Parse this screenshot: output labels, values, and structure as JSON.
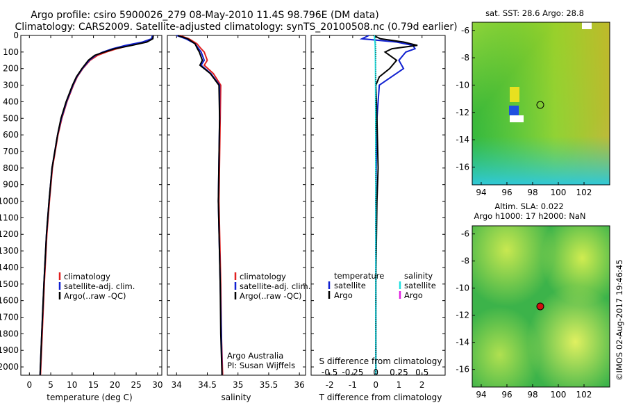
{
  "header": {
    "line1": "Argo profile: csiro 5900026_279 08-May-2010 11.4S 98.796E (DM data)",
    "line2": "Climatology: CARS2009. Satellite-adjusted climatology: synTS_20100508.nc (0.79d earlier)"
  },
  "colors": {
    "clim": "#e02020",
    "sat": "#1020d0",
    "argo": "#000000",
    "sal_sat": "#20e0e0",
    "sal_argo": "#e020e0"
  },
  "chart_data": [
    {
      "type": "line",
      "id": "temperature",
      "xlabel": "temperature (deg C)",
      "ylabel": "",
      "xlim": [
        -2,
        31
      ],
      "ylim": [
        0,
        2050
      ],
      "xticks": [
        0,
        5,
        10,
        15,
        20,
        25,
        30
      ],
      "yticks": [
        0,
        100,
        200,
        300,
        400,
        500,
        600,
        700,
        800,
        900,
        1000,
        1100,
        1200,
        1300,
        1400,
        1500,
        1600,
        1700,
        1800,
        1900,
        2000
      ],
      "legend": [
        "climatology",
        "satellite-adj. clim.",
        "Argo(..raw -QC)"
      ],
      "series": [
        {
          "name": "climatology",
          "depth": [
            0,
            20,
            40,
            60,
            80,
            100,
            120,
            150,
            200,
            250,
            300,
            400,
            500,
            600,
            800,
            1000,
            1200,
            1500,
            1800,
            2050
          ],
          "values": [
            29.0,
            28.8,
            27.0,
            23.5,
            20.5,
            18.0,
            16.0,
            14.2,
            12.5,
            11.2,
            10.3,
            8.8,
            7.6,
            6.7,
            5.4,
            4.7,
            4.1,
            3.5,
            3.0,
            2.6
          ]
        },
        {
          "name": "satellite-adj. clim.",
          "depth": [
            0,
            20,
            40,
            60,
            80,
            100,
            120,
            150,
            200,
            250,
            300,
            400,
            500,
            600,
            800,
            1000,
            1200,
            1500,
            1800,
            2050
          ],
          "values": [
            28.8,
            28.6,
            26.5,
            22.5,
            19.5,
            17.2,
            15.5,
            14.0,
            12.4,
            11.1,
            10.2,
            8.7,
            7.5,
            6.6,
            5.3,
            4.6,
            4.0,
            3.4,
            2.9,
            2.5
          ]
        },
        {
          "name": "Argo(..raw -QC)",
          "depth": [
            0,
            20,
            40,
            60,
            80,
            100,
            120,
            150,
            200,
            250,
            300,
            400,
            500,
            600,
            800,
            1000,
            1200,
            1500,
            1800,
            2050
          ],
          "values": [
            29.0,
            28.9,
            27.5,
            24.0,
            20.0,
            17.5,
            15.3,
            13.8,
            12.3,
            11.0,
            10.1,
            8.6,
            7.4,
            6.6,
            5.3,
            4.6,
            4.0,
            3.4,
            2.9,
            2.5
          ]
        }
      ]
    },
    {
      "type": "line",
      "id": "salinity",
      "xlabel": "salinity",
      "ylabel": "",
      "xlim": [
        33.85,
        36.1
      ],
      "ylim": [
        0,
        2050
      ],
      "xticks": [
        34,
        34.5,
        35,
        35.5,
        36
      ],
      "legend": [
        "climatology",
        "satellite-adj. clim.",
        "Argo(..raw -QC)"
      ],
      "series": [
        {
          "name": "climatology",
          "depth": [
            0,
            20,
            50,
            80,
            100,
            150,
            180,
            230,
            300,
            500,
            1000,
            1500,
            1800,
            2050
          ],
          "values": [
            34.05,
            34.2,
            34.33,
            34.4,
            34.45,
            34.5,
            34.45,
            34.6,
            34.72,
            34.71,
            34.69,
            34.72,
            34.73,
            34.75
          ]
        },
        {
          "name": "satellite-adj. clim.",
          "depth": [
            0,
            20,
            50,
            80,
            100,
            150,
            180,
            230,
            300,
            500,
            1000,
            1500,
            1800,
            2050
          ],
          "values": [
            34.0,
            34.15,
            34.3,
            34.36,
            34.4,
            34.45,
            34.4,
            34.56,
            34.7,
            34.7,
            34.68,
            34.71,
            34.73,
            34.74
          ]
        },
        {
          "name": "Argo(..raw -QC)",
          "depth": [
            0,
            20,
            50,
            80,
            100,
            150,
            180,
            230,
            300,
            500,
            1000,
            1500,
            1800,
            2050
          ],
          "values": [
            34.02,
            34.18,
            34.3,
            34.34,
            34.37,
            34.42,
            34.38,
            34.55,
            34.69,
            34.7,
            34.68,
            34.71,
            34.72,
            34.74
          ]
        }
      ],
      "annotation": [
        "Argo Australia",
        "PI: Susan Wijffels"
      ]
    },
    {
      "type": "line",
      "id": "difference",
      "xlabel": "T difference from climatology",
      "xlabel_top": "S difference from climatology",
      "xlim": [
        -2.8,
        3.0
      ],
      "ylim": [
        0,
        2050
      ],
      "xticks": [
        -2,
        -1,
        0,
        1,
        2
      ],
      "sticks": [
        {
          "label": "-0.5",
          "value": -0.5
        },
        {
          "label": "-0.25",
          "value": -0.25
        },
        {
          "label": "0",
          "value": 0
        },
        {
          "label": "0.25",
          "value": 0.25
        },
        {
          "label": "0.5",
          "value": 0.5
        }
      ],
      "legend_temperature": {
        "title": "temperature",
        "items": [
          "satellite",
          "Argo"
        ]
      },
      "legend_salinity": {
        "title": "salinity",
        "items": [
          "satellite",
          "Argo"
        ]
      },
      "series": [
        {
          "name": "T satellite",
          "depth": [
            0,
            20,
            40,
            60,
            80,
            100,
            150,
            200,
            300,
            500,
            1000,
            1500,
            2050
          ],
          "values": [
            -0.3,
            -0.6,
            0.9,
            1.6,
            1.7,
            1.3,
            1.0,
            1.2,
            0.15,
            0.05,
            0.0,
            0.0,
            0.0
          ]
        },
        {
          "name": "T Argo",
          "depth": [
            0,
            20,
            40,
            60,
            80,
            100,
            150,
            200,
            250,
            300,
            500,
            800,
            1000,
            1500,
            2050
          ],
          "values": [
            -0.1,
            0.2,
            1.2,
            1.8,
            0.7,
            0.4,
            0.9,
            0.6,
            0.15,
            0.0,
            0.05,
            0.1,
            0.05,
            0.0,
            0.0
          ]
        },
        {
          "name": "S satellite",
          "depth": [
            0,
            20,
            50,
            100,
            200,
            300,
            500,
            1000,
            1500,
            2050
          ],
          "values": [
            -0.06,
            -0.05,
            -0.03,
            -0.02,
            -0.015,
            -0.01,
            -0.005,
            0.0,
            0.0,
            0.0
          ]
        }
      ]
    }
  ],
  "maps": {
    "sst_title": "sat. SST: 28.6  Argo: 28.8",
    "sla_title1": "Altim. SLA: 0.022",
    "sla_title2": "Argo h1000: 17  h2000: NaN",
    "xticks": [
      "94",
      "96",
      "98",
      "100",
      "102"
    ],
    "yticks": [
      "-6",
      "-8",
      "-10",
      "-12",
      "-14",
      "-16"
    ]
  },
  "footer": "©IMOS 02-Aug-2017 19:46:45"
}
